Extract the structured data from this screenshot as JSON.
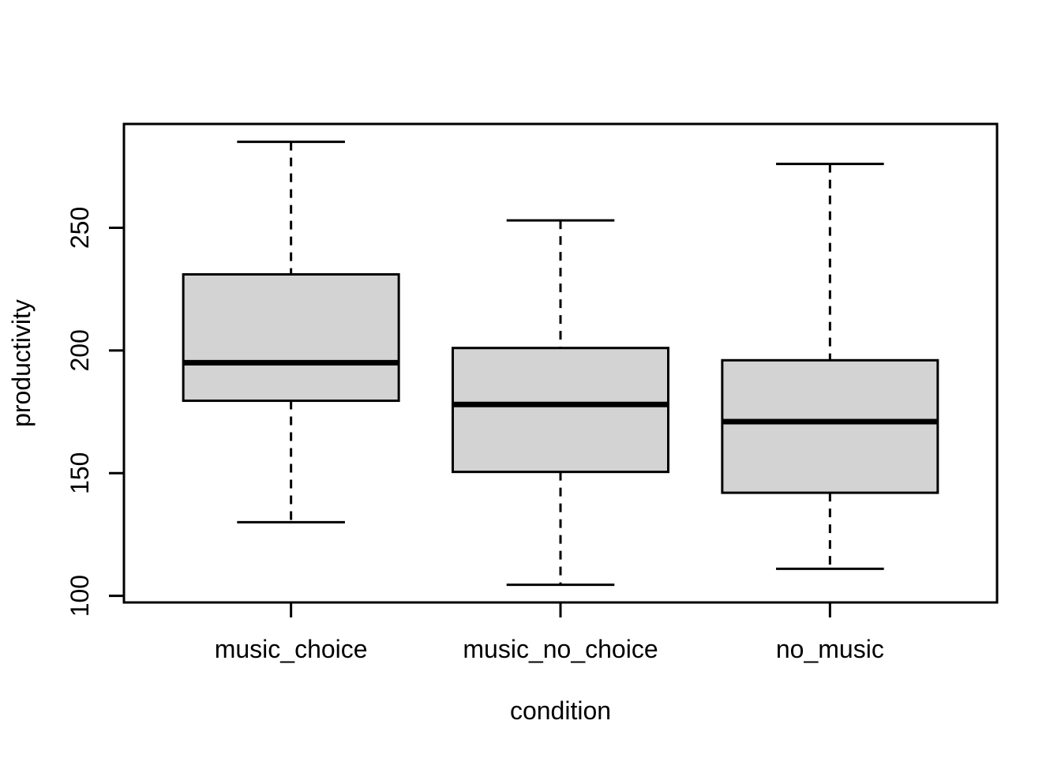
{
  "chart_data": {
    "type": "boxplot",
    "title": "",
    "xlabel": "condition",
    "ylabel": "productivity",
    "categories": [
      "music_choice",
      "music_no_choice",
      "no_music"
    ],
    "series": [
      {
        "name": "music_choice",
        "whisker_low": 130,
        "q1": 179.5,
        "median": 195,
        "q3": 231,
        "whisker_high": 285
      },
      {
        "name": "music_no_choice",
        "whisker_low": 104.5,
        "q1": 150.5,
        "median": 178,
        "q3": 201,
        "whisker_high": 253
      },
      {
        "name": "no_music",
        "whisker_low": 111,
        "q1": 142,
        "median": 171,
        "q3": 196,
        "whisker_high": 276
      }
    ],
    "yticks": [
      100,
      150,
      200,
      250
    ],
    "ylim": [
      97.3,
      292.3
    ],
    "grid": false,
    "legend": "none",
    "styles": {
      "box_fill": "#d3d3d3",
      "line_color": "#000000",
      "background": "#ffffff"
    }
  }
}
